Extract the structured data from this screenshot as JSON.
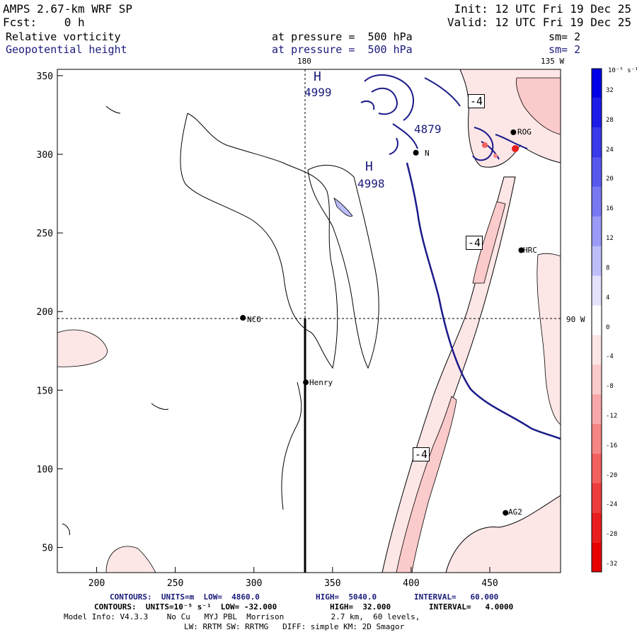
{
  "header": {
    "model": "AMPS 2.67-km WRF SP",
    "fcst": "Fcst:    0 h",
    "init": "Init: 12 UTC Fri 19 Dec 25",
    "valid": "Valid: 12 UTC Fri 19 Dec 25",
    "field1": "Relative vorticity",
    "field1_level": "at pressure =  500 hPa",
    "field1_sm": "sm= 2",
    "field2": "Geopotential height",
    "field2_level": "at pressure =  500 hPa",
    "field2_sm": "sm= 2"
  },
  "map": {
    "lon_labels": {
      "top_center": "180",
      "top_right": "135 W",
      "right_mid": "90 W"
    },
    "x_ticks": [
      "200",
      "250",
      "300",
      "350",
      "400",
      "450"
    ],
    "y_ticks": [
      "350",
      "300",
      "250",
      "200",
      "150",
      "100",
      "50"
    ],
    "stations": [
      {
        "name": "NCO",
        "x": 293,
        "y": 196
      },
      {
        "name": "Henry",
        "x": 333,
        "y": 155
      },
      {
        "name": "HRC",
        "x": 470,
        "y": 239
      },
      {
        "name": "AG2",
        "x": 460,
        "y": 72
      },
      {
        "name": "ROG",
        "x": 465,
        "y": 314
      },
      {
        "name": "N",
        "x": 403,
        "y": 301
      }
    ],
    "highs": [
      {
        "label": "H",
        "value": "4999"
      },
      {
        "label": "H",
        "value": "4998"
      }
    ],
    "height_label": "4879",
    "vort_labels": [
      "-4",
      "-4",
      "-4"
    ]
  },
  "colorbar": {
    "unit": "10⁻⁵ s⁻¹",
    "labels": [
      "32",
      "28",
      "24",
      "20",
      "16",
      "12",
      "8",
      "4",
      "0",
      "-4",
      "-8",
      "-12",
      "-16",
      "-20",
      "-24",
      "-28",
      "-32"
    ],
    "colors": [
      "#0000e6",
      "#1c1ce8",
      "#3a3aea",
      "#5858ee",
      "#7878f2",
      "#9a9af6",
      "#bdbdfa",
      "#e2e2fd",
      "#ffffff",
      "#fde6e6",
      "#fbcaca",
      "#f8a8a8",
      "#f58484",
      "#f26060",
      "#ee3c3c",
      "#ea1e1e",
      "#e60000"
    ]
  },
  "footer": {
    "line1_a": "CONTOURS:  UNITS=m  LOW=  4860.0",
    "line1_b": "HIGH=  5040.0",
    "line1_c": "INTERVAL=   60.000",
    "line2_a": "CONTOURS:  UNITS=10⁻⁵ s⁻¹  LOW= -32.000",
    "line2_b": "HIGH=  32.000",
    "line2_c": "INTERVAL=   4.0000",
    "line3": "Model Info: V4.3.3    No Cu   MYJ PBL  Morrison          2.7 km,  60 levels,",
    "line4": "LW: RRTM SW: RRTMG   DIFF: simple KM: 2D Smagor"
  }
}
